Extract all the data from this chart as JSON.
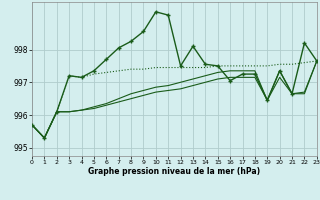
{
  "title": "Graphe pression niveau de la mer (hPa)",
  "bg_color": "#d4eeee",
  "grid_color": "#b0cccc",
  "line_color": "#1a5c1a",
  "xlim": [
    0,
    23
  ],
  "ylim": [
    994.75,
    999.45
  ],
  "yticks": [
    995,
    996,
    997,
    998
  ],
  "xtick_labels": [
    "0",
    "1",
    "2",
    "3",
    "4",
    "5",
    "6",
    "7",
    "8",
    "9",
    "10",
    "11",
    "12",
    "13",
    "14",
    "15",
    "16",
    "17",
    "18",
    "19",
    "20",
    "21",
    "22",
    "23"
  ],
  "main_series": [
    995.7,
    995.3,
    996.1,
    997.2,
    997.15,
    997.35,
    997.7,
    998.05,
    998.25,
    998.55,
    999.15,
    999.05,
    997.5,
    998.1,
    997.55,
    997.5,
    997.05,
    997.25,
    997.25,
    996.45,
    997.35,
    996.65,
    998.2,
    997.65
  ],
  "line2": [
    995.7,
    995.3,
    996.1,
    997.2,
    997.15,
    997.25,
    997.3,
    997.35,
    997.4,
    997.4,
    997.45,
    997.45,
    997.45,
    997.45,
    997.45,
    997.5,
    997.5,
    997.5,
    997.5,
    997.5,
    997.55,
    997.55,
    997.6,
    997.65
  ],
  "line3": [
    995.7,
    995.3,
    996.1,
    996.1,
    996.15,
    996.25,
    996.35,
    996.5,
    996.65,
    996.75,
    996.85,
    996.9,
    997.0,
    997.1,
    997.2,
    997.3,
    997.35,
    997.35,
    997.35,
    996.45,
    997.35,
    996.65,
    996.65,
    997.65
  ],
  "line4": [
    995.7,
    995.3,
    996.1,
    996.1,
    996.15,
    996.2,
    996.3,
    996.4,
    996.5,
    996.6,
    996.7,
    996.75,
    996.8,
    996.9,
    997.0,
    997.1,
    997.15,
    997.15,
    997.15,
    996.45,
    997.15,
    996.65,
    996.7,
    997.65
  ]
}
